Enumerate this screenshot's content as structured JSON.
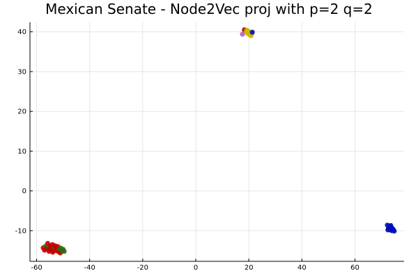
{
  "chart_data": {
    "type": "scatter",
    "title": "Mexican Senate - Node2Vec proj with p=2 q=2",
    "xlabel": "",
    "ylabel": "",
    "xlim": [
      -62.5,
      78.5
    ],
    "ylim": [
      -17.7,
      42.4
    ],
    "grid": true,
    "legend": "none",
    "x_ticks": [
      -60,
      -40,
      -20,
      0,
      20,
      40,
      60
    ],
    "y_ticks": [
      -10,
      0,
      10,
      20,
      30,
      40
    ],
    "colors": {
      "red": "#c40000",
      "green": "#2f6a12",
      "yellow": "#d4b400",
      "purple": "#b45ac8",
      "blue": "#0010b8"
    },
    "points": [
      {
        "x": -57.5,
        "y": -14.3,
        "c": "red"
      },
      {
        "x": -57.0,
        "y": -14.9,
        "c": "red"
      },
      {
        "x": -56.6,
        "y": -13.9,
        "c": "green"
      },
      {
        "x": -56.2,
        "y": -14.5,
        "c": "red"
      },
      {
        "x": -55.8,
        "y": -13.2,
        "c": "red"
      },
      {
        "x": -55.5,
        "y": -14.1,
        "c": "green"
      },
      {
        "x": -55.1,
        "y": -14.7,
        "c": "red"
      },
      {
        "x": -54.8,
        "y": -13.8,
        "c": "red"
      },
      {
        "x": -54.4,
        "y": -14.4,
        "c": "red"
      },
      {
        "x": -54.0,
        "y": -13.5,
        "c": "red"
      },
      {
        "x": -53.7,
        "y": -14.9,
        "c": "red"
      },
      {
        "x": -53.3,
        "y": -14.2,
        "c": "green"
      },
      {
        "x": -53.0,
        "y": -13.8,
        "c": "red"
      },
      {
        "x": -52.7,
        "y": -15.0,
        "c": "red"
      },
      {
        "x": -52.4,
        "y": -14.4,
        "c": "red"
      },
      {
        "x": -52.0,
        "y": -14.0,
        "c": "red"
      },
      {
        "x": -51.7,
        "y": -15.3,
        "c": "red"
      },
      {
        "x": -51.4,
        "y": -14.7,
        "c": "green"
      },
      {
        "x": -51.1,
        "y": -15.6,
        "c": "red"
      },
      {
        "x": -50.8,
        "y": -14.4,
        "c": "green"
      },
      {
        "x": -50.4,
        "y": -15.1,
        "c": "green"
      },
      {
        "x": -50.0,
        "y": -14.7,
        "c": "green"
      },
      {
        "x": -49.6,
        "y": -15.2,
        "c": "green"
      },
      {
        "x": -55.3,
        "y": -15.2,
        "c": "red"
      },
      {
        "x": -53.9,
        "y": -15.4,
        "c": "red"
      },
      {
        "x": 17.6,
        "y": 39.4,
        "c": "purple"
      },
      {
        "x": 18.3,
        "y": 40.5,
        "c": "red"
      },
      {
        "x": 18.7,
        "y": 40.2,
        "c": "green"
      },
      {
        "x": 19.0,
        "y": 39.9,
        "c": "yellow"
      },
      {
        "x": 19.3,
        "y": 40.4,
        "c": "yellow"
      },
      {
        "x": 19.6,
        "y": 39.6,
        "c": "yellow"
      },
      {
        "x": 19.9,
        "y": 40.1,
        "c": "yellow"
      },
      {
        "x": 20.2,
        "y": 39.3,
        "c": "yellow"
      },
      {
        "x": 20.5,
        "y": 39.8,
        "c": "yellow"
      },
      {
        "x": 20.8,
        "y": 39.0,
        "c": "yellow"
      },
      {
        "x": 21.1,
        "y": 39.5,
        "c": "yellow"
      },
      {
        "x": 21.3,
        "y": 39.9,
        "c": "blue"
      },
      {
        "x": 72.2,
        "y": -8.6,
        "c": "blue"
      },
      {
        "x": 72.6,
        "y": -9.4,
        "c": "blue"
      },
      {
        "x": 73.0,
        "y": -8.9,
        "c": "blue"
      },
      {
        "x": 73.3,
        "y": -9.8,
        "c": "blue"
      },
      {
        "x": 73.6,
        "y": -9.1,
        "c": "blue"
      },
      {
        "x": 73.9,
        "y": -10.0,
        "c": "blue"
      },
      {
        "x": 74.2,
        "y": -9.5,
        "c": "blue"
      },
      {
        "x": 74.5,
        "y": -9.8,
        "c": "blue"
      },
      {
        "x": 74.8,
        "y": -10.1,
        "c": "blue"
      },
      {
        "x": 72.4,
        "y": -9.8,
        "c": "blue"
      },
      {
        "x": 73.5,
        "y": -8.7,
        "c": "blue"
      }
    ]
  }
}
